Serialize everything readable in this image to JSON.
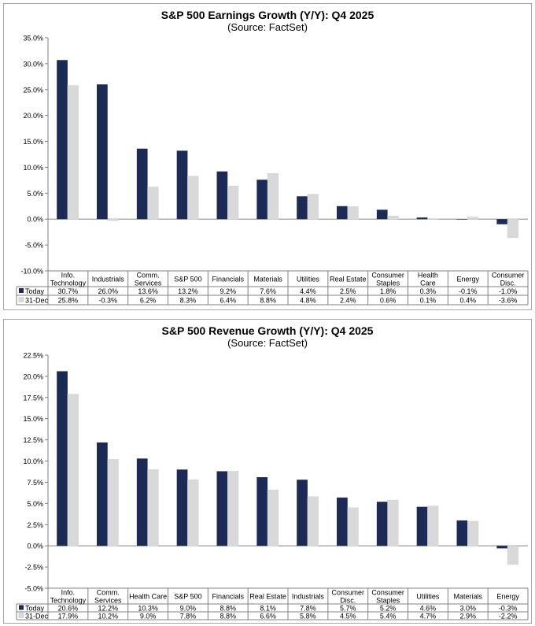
{
  "chart_data": [
    {
      "type": "bar",
      "title": "S&P 500 Earnings Growth (Y/Y): Q4 2025",
      "subtitle": "(Source: FactSet)",
      "ylim": [
        -10,
        35
      ],
      "yticks": [
        "35.0%",
        "30.0%",
        "25.0%",
        "20.0%",
        "15.0%",
        "10.0%",
        "5.0%",
        "0.0%",
        "-5.0%",
        "-10.0%"
      ],
      "ytick_values": [
        35,
        30,
        25,
        20,
        15,
        10,
        5,
        0,
        -5,
        -10
      ],
      "categories": [
        [
          "Info.",
          "Technology"
        ],
        [
          "Industrials"
        ],
        [
          "Comm.",
          "Services"
        ],
        [
          "S&P 500"
        ],
        [
          "Financials"
        ],
        [
          "Materials"
        ],
        [
          "Utilities"
        ],
        [
          "Real Estate"
        ],
        [
          "Consumer",
          "Staples"
        ],
        [
          "Health",
          "Care"
        ],
        [
          "Energy"
        ],
        [
          "Consumer",
          "Disc."
        ]
      ],
      "series": [
        {
          "name": "Today",
          "color": "#1c2b55",
          "values": [
            30.7,
            26.0,
            13.6,
            13.2,
            9.2,
            7.6,
            4.4,
            2.5,
            1.8,
            0.3,
            -0.1,
            -1.0
          ],
          "labels": [
            "30.7%",
            "26.0%",
            "13.6%",
            "13.2%",
            "9.2%",
            "7.6%",
            "4.4%",
            "2.5%",
            "1.8%",
            "0.3%",
            "-0.1%",
            "-1.0%"
          ]
        },
        {
          "name": "31-Dec",
          "color": "#d9d9d9",
          "values": [
            25.8,
            -0.3,
            6.2,
            8.3,
            6.4,
            8.8,
            4.8,
            2.4,
            0.6,
            0.1,
            0.4,
            -3.6
          ],
          "labels": [
            "25.8%",
            "-0.3%",
            "6.2%",
            "8.3%",
            "6.4%",
            "8.8%",
            "4.8%",
            "2.4%",
            "0.6%",
            "0.1%",
            "0.4%",
            "-3.6%"
          ]
        }
      ],
      "grid": false,
      "legend": "data table"
    },
    {
      "type": "bar",
      "title": "S&P 500 Revenue Growth (Y/Y): Q4 2025",
      "subtitle": "(Source: FactSet)",
      "ylim": [
        -5,
        22.5
      ],
      "yticks": [
        "22.5%",
        "20.0%",
        "17.5%",
        "15.0%",
        "12.5%",
        "10.0%",
        "7.5%",
        "5.0%",
        "2.5%",
        "0.0%",
        "-2.5%",
        "-5.0%"
      ],
      "ytick_values": [
        22.5,
        20,
        17.5,
        15,
        12.5,
        10,
        7.5,
        5,
        2.5,
        0,
        -2.5,
        -5
      ],
      "categories": [
        [
          "Info.",
          "Technology"
        ],
        [
          "Comm.",
          "Services"
        ],
        [
          "Health Care"
        ],
        [
          "S&P 500"
        ],
        [
          "Financials"
        ],
        [
          "Real Estate"
        ],
        [
          "Industrials"
        ],
        [
          "Consumer",
          "Disc."
        ],
        [
          "Consumer",
          "Staples"
        ],
        [
          "Utilities"
        ],
        [
          "Materials"
        ],
        [
          "Energy"
        ]
      ],
      "series": [
        {
          "name": "Today",
          "color": "#1c2b55",
          "values": [
            20.6,
            12.2,
            10.3,
            9.0,
            8.8,
            8.1,
            7.8,
            5.7,
            5.2,
            4.6,
            3.0,
            -0.3
          ],
          "labels": [
            "20.6%",
            "12.2%",
            "10.3%",
            "9.0%",
            "8.8%",
            "8.1%",
            "7.8%",
            "5.7%",
            "5.2%",
            "4.6%",
            "3.0%",
            "-0.3%"
          ]
        },
        {
          "name": "31-Dec",
          "color": "#d9d9d9",
          "values": [
            17.9,
            10.2,
            9.0,
            7.8,
            8.8,
            6.6,
            5.8,
            4.5,
            5.4,
            4.7,
            2.9,
            -2.2
          ],
          "labels": [
            "17.9%",
            "10.2%",
            "9.0%",
            "7.8%",
            "8.8%",
            "6.6%",
            "5.8%",
            "4.5%",
            "5.4%",
            "4.7%",
            "2.9%",
            "-2.2%"
          ]
        }
      ],
      "grid": false,
      "legend": "data table"
    }
  ]
}
